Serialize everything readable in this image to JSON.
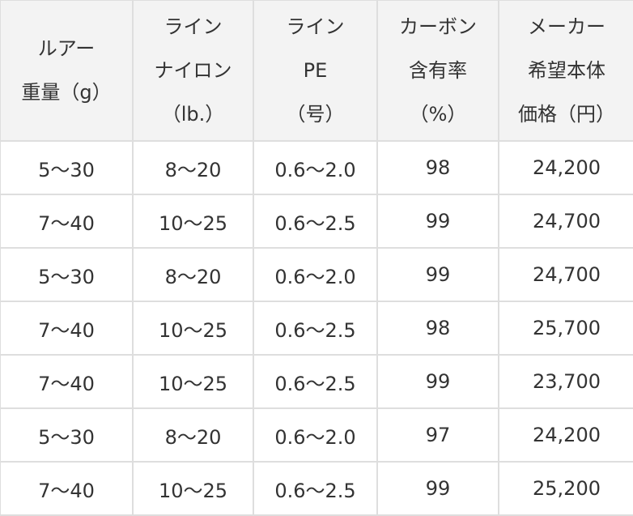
{
  "table": {
    "headers": [
      [
        "ルアー",
        "重量（g）"
      ],
      [
        "ライン",
        "ナイロン",
        "（lb.）"
      ],
      [
        "ライン",
        "PE",
        "（号）"
      ],
      [
        "カーボン",
        "含有率",
        "（%）"
      ],
      [
        "メーカー",
        "希望本体",
        "価格（円）"
      ]
    ],
    "rows": [
      [
        "5〜30",
        "8〜20",
        "0.6〜2.0",
        "98",
        "24,200"
      ],
      [
        "7〜40",
        "10〜25",
        "0.6〜2.5",
        "99",
        "24,700"
      ],
      [
        "5〜30",
        "8〜20",
        "0.6〜2.0",
        "99",
        "24,700"
      ],
      [
        "7〜40",
        "10〜25",
        "0.6〜2.5",
        "98",
        "25,700"
      ],
      [
        "7〜40",
        "10〜25",
        "0.6〜2.5",
        "99",
        "23,700"
      ],
      [
        "5〜30",
        "8〜20",
        "0.6〜2.0",
        "97",
        "24,200"
      ],
      [
        "7〜40",
        "10〜25",
        "0.6〜2.5",
        "99",
        "25,200"
      ]
    ]
  }
}
